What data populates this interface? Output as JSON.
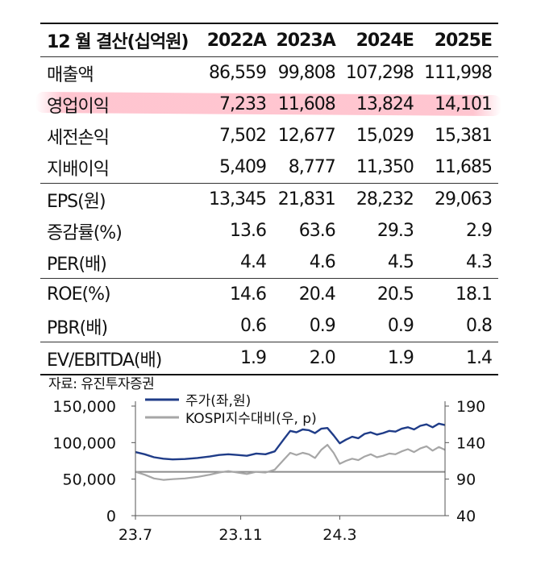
{
  "table": {
    "header": [
      "12 월 결산(십억원)",
      "2022A",
      "2023A",
      "2024E",
      "2025E"
    ],
    "rows": [
      {
        "label": "매출액",
        "values": [
          "86,559",
          "99,808",
          "107,298",
          "111,998"
        ]
      },
      {
        "label": "영업이익",
        "values": [
          "7,233",
          "11,608",
          "13,824",
          "14,101"
        ]
      },
      {
        "label": "세전손익",
        "values": [
          "7,502",
          "12,677",
          "15,029",
          "15,381"
        ]
      },
      {
        "label": "지배이익",
        "values": [
          "5,409",
          "8,777",
          "11,350",
          "11,685"
        ]
      },
      {
        "label": "EPS(원)",
        "values": [
          "13,345",
          "21,831",
          "28,232",
          "29,063"
        ]
      },
      {
        "label": "증감률(%)",
        "values": [
          "13.6",
          "63.6",
          "29.3",
          "2.9"
        ]
      },
      {
        "label": "PER(배)",
        "values": [
          "4.4",
          "4.6",
          "4.5",
          "4.3"
        ]
      },
      {
        "label": "ROE(%)",
        "values": [
          "14.6",
          "20.4",
          "20.5",
          "18.1"
        ]
      },
      {
        "label": "PBR(배)",
        "values": [
          "0.6",
          "0.9",
          "0.9",
          "0.8"
        ]
      },
      {
        "label": "EV/EBITDA(배)",
        "values": [
          "1.9",
          "2.0",
          "1.9",
          "1.4"
        ]
      }
    ]
  },
  "source": "자료: 유진투자증권",
  "chart_data": {
    "type": "line",
    "x_ticks": [
      "23.7",
      "23.11",
      "24.3"
    ],
    "y_left": {
      "ticks": [
        "150,000",
        "100,000",
        "50,000",
        "0"
      ],
      "range": [
        0,
        150000
      ]
    },
    "y_right": {
      "ticks": [
        "190",
        "140",
        "90",
        "40"
      ],
      "range": [
        40,
        190
      ]
    },
    "reference_line_right": 100,
    "series": [
      {
        "name": "주가(좌,원)",
        "axis": "left",
        "color": "#1f3c88",
        "t": [
          0,
          0.03,
          0.06,
          0.09,
          0.12,
          0.16,
          0.2,
          0.24,
          0.27,
          0.3,
          0.33,
          0.36,
          0.39,
          0.42,
          0.45,
          0.48,
          0.5,
          0.52,
          0.54,
          0.56,
          0.58,
          0.6,
          0.62,
          0.64,
          0.66,
          0.68,
          0.7,
          0.72,
          0.74,
          0.76,
          0.78,
          0.8,
          0.82,
          0.84,
          0.86,
          0.88,
          0.9,
          0.92,
          0.94,
          0.96,
          0.98,
          1.0
        ],
        "values": [
          87000,
          84000,
          80000,
          78000,
          77000,
          77500,
          79000,
          81000,
          83000,
          84000,
          83000,
          82000,
          85000,
          84000,
          88000,
          105000,
          116000,
          114000,
          118000,
          117000,
          113000,
          119000,
          120000,
          110000,
          99000,
          104000,
          108000,
          106000,
          112000,
          114000,
          111000,
          113000,
          116000,
          115000,
          119000,
          121000,
          118000,
          123000,
          125000,
          121000,
          126000,
          124000
        ]
      },
      {
        "name": "KOSPI지수대비(우, p)",
        "axis": "right",
        "color": "#a6a6a6",
        "t": [
          0,
          0.03,
          0.06,
          0.09,
          0.12,
          0.16,
          0.2,
          0.24,
          0.27,
          0.3,
          0.33,
          0.36,
          0.39,
          0.42,
          0.45,
          0.48,
          0.5,
          0.52,
          0.54,
          0.56,
          0.58,
          0.6,
          0.62,
          0.64,
          0.66,
          0.68,
          0.7,
          0.72,
          0.74,
          0.76,
          0.78,
          0.8,
          0.82,
          0.84,
          0.86,
          0.88,
          0.9,
          0.92,
          0.94,
          0.96,
          0.98,
          1.0
        ],
        "values": [
          100,
          96,
          91,
          89,
          90,
          91,
          93,
          96,
          99,
          101,
          99,
          97,
          100,
          99,
          103,
          117,
          126,
          123,
          126,
          124,
          119,
          130,
          137,
          126,
          111,
          115,
          118,
          116,
          121,
          124,
          120,
          122,
          125,
          124,
          128,
          131,
          127,
          132,
          135,
          129,
          134,
          130
        ]
      }
    ]
  }
}
